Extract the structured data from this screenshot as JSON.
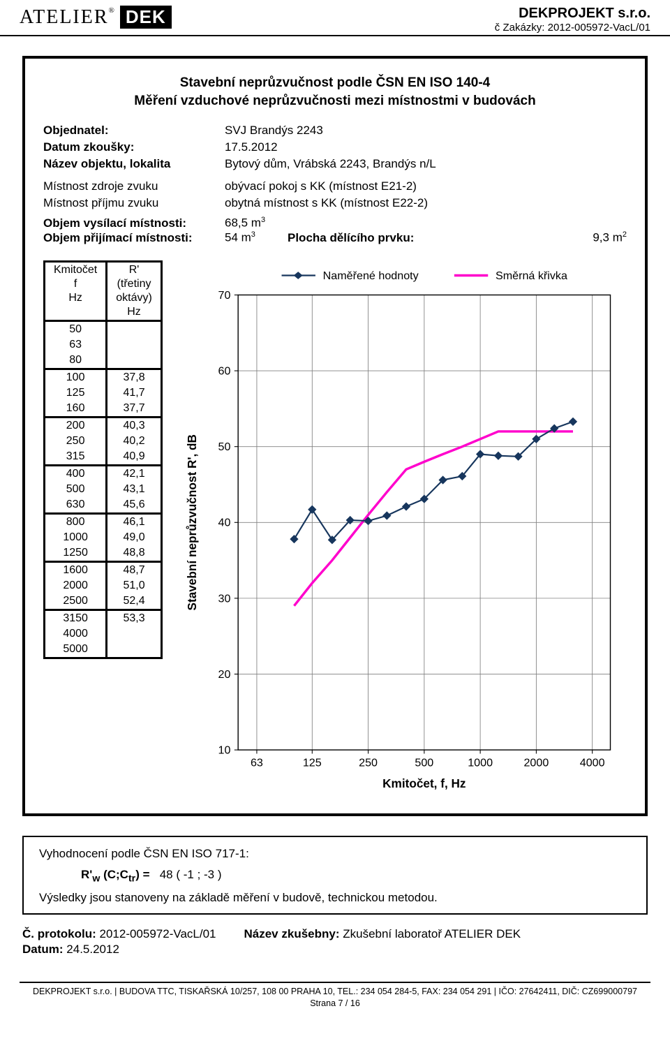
{
  "header": {
    "logo_atelier": "ATELIER",
    "logo_dek": "DEK",
    "company": "DEKPROJEKT s.r.o.",
    "order_label": "č Zakázky:",
    "order_no": "2012-005972-VacL/01"
  },
  "title": {
    "line1": "Stavební neprůzvučnost podle ČSN EN ISO 140-4",
    "line2": "Měření vzduchové neprůzvučnosti mezi místnostmi v budovách"
  },
  "meta": {
    "objednatel_label": "Objednatel:",
    "objednatel_value": "SVJ Brandýs 2243",
    "datum_zk_label": "Datum zkoušky:",
    "datum_zk_value": "17.5.2012",
    "nazev_label": "Název objektu, lokalita",
    "nazev_value": "Bytový dům, Vrábská 2243, Brandýs n/L",
    "zdroj_label": "Místnost zdroje zvuku",
    "zdroj_value": "obývací pokoj s KK (místnost E21-2)",
    "prijmu_label": "Místnost příjmu zvuku",
    "prijmu_value": "obytná místnost s KK (místnost E22-2)",
    "vysilaci_label": "Objem vysílací místnosti:",
    "vysilaci_value": "68,5 m",
    "prijimaci_label": "Objem přijímací místnosti:",
    "prijimaci_value": "54 m",
    "plocha_label": "Plocha dělícího prvku:",
    "plocha_value": "9,3 m"
  },
  "table": {
    "col1_h1": "Kmitočet",
    "col1_h2": "f",
    "col1_h3": "Hz",
    "col2_h1": "R'",
    "col2_h2": "(třetiny",
    "col2_h3": "oktávy)",
    "col2_h4": "Hz",
    "rows": [
      {
        "f": "50",
        "r": ""
      },
      {
        "f": "63",
        "r": ""
      },
      {
        "f": "80",
        "r": ""
      },
      {
        "f": "100",
        "r": "37,8"
      },
      {
        "f": "125",
        "r": "41,7"
      },
      {
        "f": "160",
        "r": "37,7"
      },
      {
        "f": "200",
        "r": "40,3"
      },
      {
        "f": "250",
        "r": "40,2"
      },
      {
        "f": "315",
        "r": "40,9"
      },
      {
        "f": "400",
        "r": "42,1"
      },
      {
        "f": "500",
        "r": "43,1"
      },
      {
        "f": "630",
        "r": "45,6"
      },
      {
        "f": "800",
        "r": "46,1"
      },
      {
        "f": "1000",
        "r": "49,0"
      },
      {
        "f": "1250",
        "r": "48,8"
      },
      {
        "f": "1600",
        "r": "48,7"
      },
      {
        "f": "2000",
        "r": "51,0"
      },
      {
        "f": "2500",
        "r": "52,4"
      },
      {
        "f": "3150",
        "r": "53,3"
      },
      {
        "f": "4000",
        "r": ""
      },
      {
        "f": "5000",
        "r": ""
      }
    ]
  },
  "chart": {
    "legend_measured": "Naměřené hodnoty",
    "legend_ref": "Směrná křivka",
    "x_label": "Kmitočet, f, Hz",
    "y_label": "Stavební neprůzvučnost R', dB",
    "x_ticks": [
      "63",
      "125",
      "250",
      "500",
      "1000",
      "2000",
      "4000"
    ],
    "y_ticks": [
      "10",
      "20",
      "30",
      "40",
      "50",
      "60",
      "70"
    ],
    "y_min": 10,
    "y_max": 70,
    "x_log_min": 50,
    "x_log_max": 5000,
    "colors": {
      "measured": "#17365d",
      "reference": "#ff00cc",
      "grid": "#808080",
      "axis": "#000000",
      "bg": "#ffffff"
    },
    "marker_size": 5,
    "line_width_measured": 2,
    "line_width_ref": 3.2,
    "measured_points": [
      {
        "f": 100,
        "r": 37.8
      },
      {
        "f": 125,
        "r": 41.7
      },
      {
        "f": 160,
        "r": 37.7
      },
      {
        "f": 200,
        "r": 40.3
      },
      {
        "f": 250,
        "r": 40.2
      },
      {
        "f": 315,
        "r": 40.9
      },
      {
        "f": 400,
        "r": 42.1
      },
      {
        "f": 500,
        "r": 43.1
      },
      {
        "f": 630,
        "r": 45.6
      },
      {
        "f": 800,
        "r": 46.1
      },
      {
        "f": 1000,
        "r": 49.0
      },
      {
        "f": 1250,
        "r": 48.8
      },
      {
        "f": 1600,
        "r": 48.7
      },
      {
        "f": 2000,
        "r": 51.0
      },
      {
        "f": 2500,
        "r": 52.4
      },
      {
        "f": 3150,
        "r": 53.3
      }
    ],
    "reference_points": [
      {
        "f": 100,
        "r": 29
      },
      {
        "f": 125,
        "r": 32
      },
      {
        "f": 160,
        "r": 35
      },
      {
        "f": 200,
        "r": 38
      },
      {
        "f": 250,
        "r": 41
      },
      {
        "f": 315,
        "r": 44
      },
      {
        "f": 400,
        "r": 47
      },
      {
        "f": 500,
        "r": 48
      },
      {
        "f": 630,
        "r": 49
      },
      {
        "f": 800,
        "r": 50
      },
      {
        "f": 1000,
        "r": 51
      },
      {
        "f": 1250,
        "r": 52
      },
      {
        "f": 1600,
        "r": 52
      },
      {
        "f": 2000,
        "r": 52
      },
      {
        "f": 2500,
        "r": 52
      },
      {
        "f": 3150,
        "r": 52
      }
    ]
  },
  "eval": {
    "heading": "Vyhodnocení podle ČSN EN ISO 717-1:",
    "rw_label": "R'",
    "rw_sub": "w",
    "cc_label": "(C;C",
    "cc_sub": "tr",
    "cc_close": ") =",
    "rw_val": "48",
    "c1": "-1",
    "c2": "-3",
    "note": "Výsledky jsou stanoveny na základě měření v budově, technickou metodou."
  },
  "protocol": {
    "label": "Č. protokolu:",
    "value": "2012-005972-VacL/01",
    "lab_label": "Název zkušebny:",
    "lab_value": "Zkušební laboratoř ATELIER DEK",
    "datum_label": "Datum:",
    "datum_value": "24.5.2012"
  },
  "footer": {
    "line1": "DEKPROJEKT s.r.o. | BUDOVA TTC, TISKAŘSKÁ 10/257, 108 00 PRAHA 10, TEL.: 234 054 284-5, FAX: 234 054 291 | IČO: 27642411, DIČ: CZ699000797",
    "line2": "Strana 7 / 16"
  }
}
